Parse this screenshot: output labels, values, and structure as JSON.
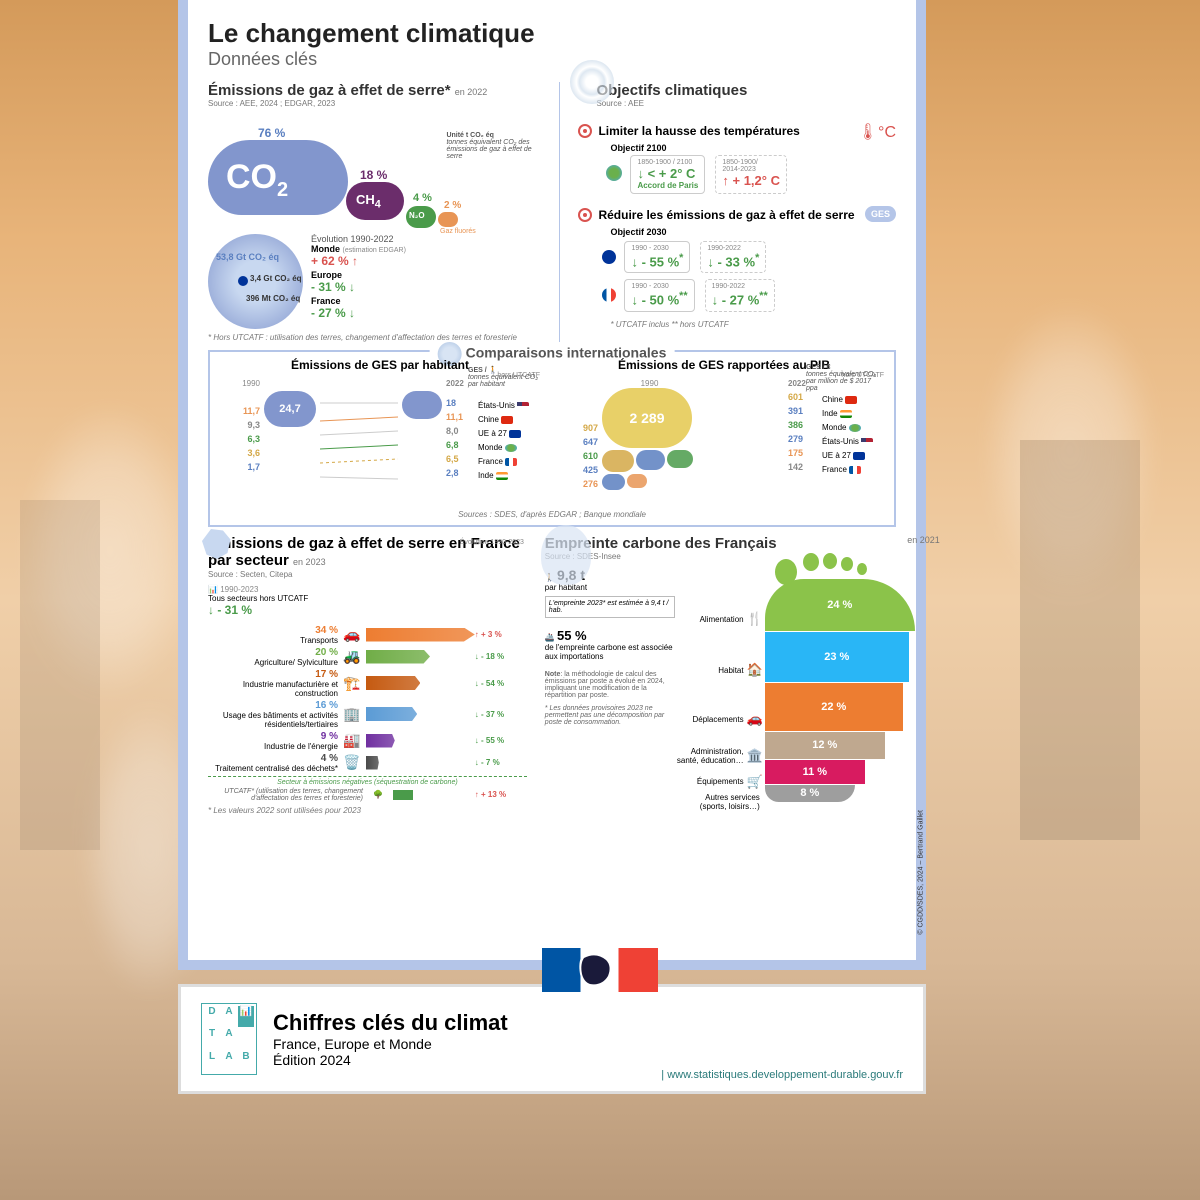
{
  "header": {
    "title": "Le changement climatique",
    "subtitle": "Données clés"
  },
  "ges": {
    "title": "Émissions de gaz à effet de serre*",
    "year": "en 2022",
    "source": "Source : AEE, 2024 ; EDGAR, 2023",
    "co2": {
      "label": "CO₂",
      "pct": "76 %",
      "color": "#8296cd"
    },
    "ch4": {
      "label": "CH₄",
      "pct": "18 %",
      "color": "#6b2d6b"
    },
    "n2o": {
      "label": "N₂O",
      "pct": "4 %",
      "color": "#4a9b4a"
    },
    "fluor": {
      "label": "Gaz fluorés",
      "pct": "2 %",
      "color": "#e89555"
    },
    "unit_title": "Unité t CO₂ éq",
    "unit_desc": "tonnes équivalent CO₂ des émissions de gaz à effet de serre",
    "evo_title": "Évolution 1990-2022",
    "monde": {
      "name": "Monde",
      "note": "(estimation EDGAR)",
      "val": "53,8 Gt CO₂ éq",
      "change": "+ 62 %",
      "dir": "up"
    },
    "europe": {
      "name": "Europe",
      "val": "3,4 Gt CO₂ éq",
      "change": "- 31 %",
      "dir": "down"
    },
    "france": {
      "name": "France",
      "val": "396 Mt CO₂ éq",
      "change": "- 27 %",
      "dir": "down"
    },
    "footnote": "* Hors UTCATF : utilisation des terres, changement d'affectation des terres et foresterie"
  },
  "objectives": {
    "title": "Objectifs climatiques",
    "source": "Source : AEE",
    "temp": {
      "title": "Limiter la hausse des températures",
      "obj": "Objectif 2100",
      "paris": {
        "period": "1850-1900 / 2100",
        "val": "< + 2° C",
        "label": "Accord de Paris"
      },
      "actual": {
        "period": "1850-1900/\n2014-2023",
        "val": "+ 1,2° C"
      }
    },
    "reduce": {
      "title": "Réduire les émissions de gaz à effet de serre",
      "obj": "Objectif 2030",
      "ges_label": "GES",
      "eu": {
        "target_period": "1990 - 2030",
        "target": "- 55 %",
        "target_note": "*",
        "actual_period": "1990-2022",
        "actual": "- 33 %",
        "actual_note": "*"
      },
      "fr": {
        "target_period": "1990 - 2030",
        "target": "- 50 %",
        "target_note": "**",
        "actual_period": "1990-2022",
        "actual": "- 27 %",
        "actual_note": "**"
      }
    },
    "notes": "* UTCATF inclus    ** hors UTCATF"
  },
  "intl": {
    "title": "Comparaisons internationales",
    "source": "Sources : SDES, d'après EDGAR ; Banque mondiale",
    "percap": {
      "title": "Émissions de GES par habitant",
      "note": "hors UTCATF",
      "unit_title": "GES /",
      "unit_desc": "tonnes équivalent CO₂ par habitant",
      "y1990": "1990",
      "y2022": "2022",
      "rows": [
        {
          "v90": "24,7",
          "v22": "18",
          "label": "États-Unis",
          "flag": "us",
          "c": "#5a7fc0"
        },
        {
          "v90": "11,7",
          "v22": "11,1",
          "label": "Chine",
          "flag": "cn",
          "c": "#e89555"
        },
        {
          "v90": "9,3",
          "v22": "8,0",
          "label": "UE à 27",
          "flag": "eu",
          "c": "#888"
        },
        {
          "v90": "6,3",
          "v22": "6,8",
          "label": "Monde",
          "flag": "world",
          "c": "#4a9b4a"
        },
        {
          "v90": "3,6",
          "v22": "6,5",
          "label": "France",
          "flag": "fr",
          "c": "#d4a847"
        },
        {
          "v90": "1,7",
          "v22": "2,8",
          "label": "Inde",
          "flag": "in",
          "c": "#5a7fc0"
        }
      ]
    },
    "gdp": {
      "title": "Émissions de GES rapportées au PIB",
      "note": "hors UTCATF",
      "unit_title": "GES / €",
      "unit_desc": "tonnes équivalent CO₂ par million de $ 2017 ppa",
      "y1990": "1990",
      "big": "2 289",
      "y2022": "2022",
      "rows": [
        {
          "v90": "907",
          "v22": "601",
          "label": "Chine",
          "flag": "cn",
          "c": "#d4a847"
        },
        {
          "v90": "647",
          "v22": "391",
          "label": "Inde",
          "flag": "in",
          "c": "#5a7fc0"
        },
        {
          "v90": "610",
          "v22": "386",
          "label": "Monde",
          "flag": "world",
          "c": "#4a9b4a"
        },
        {
          "v90": "425",
          "v22": "279",
          "label": "États-Unis",
          "flag": "us",
          "c": "#5a7fc0"
        },
        {
          "v90": "276",
          "v22": "175",
          "label": "UE à 27",
          "flag": "eu",
          "c": "#e89555"
        },
        {
          "v90": "",
          "v22": "142",
          "label": "France",
          "flag": "fr",
          "c": "#888"
        }
      ]
    }
  },
  "sectors": {
    "title": "Émissions de gaz à effet de serre en France par secteur",
    "year": "en 2023",
    "source": "Source : Secten, Citepa",
    "total": {
      "period": "1990-2023",
      "label": "Tous secteurs hors UTCATF",
      "val": "- 31 %"
    },
    "evo_label": "Évolution 1990-2023",
    "rows": [
      {
        "pct": "34 %",
        "label": "Transports",
        "change": "+ 3 %",
        "dir": "up",
        "c": "#ed7d31"
      },
      {
        "pct": "20 %",
        "label": "Agriculture/\nSylviculture",
        "change": "- 18 %",
        "dir": "down",
        "c": "#70ad47"
      },
      {
        "pct": "17 %",
        "label": "Industrie manufacturière et construction",
        "change": "- 54 %",
        "dir": "down",
        "c": "#c55a11"
      },
      {
        "pct": "16 %",
        "label": "Usage des bâtiments et activités résidentiels/tertiaires",
        "change": "- 37 %",
        "dir": "down",
        "c": "#5b9bd5"
      },
      {
        "pct": "9 %",
        "label": "Industrie de l'énergie",
        "change": "- 55 %",
        "dir": "down",
        "c": "#7030a0"
      },
      {
        "pct": "4 %",
        "label": "Traitement centralisé des déchets*",
        "change": "- 7 %",
        "dir": "down",
        "c": "#4a4a4a"
      }
    ],
    "negative": {
      "title": "Secteur à émissions négatives (séquestration de carbone)",
      "label": "UTCATF* (utilisation des terres, changement d'affectation des terres et foresterie)",
      "change": "+ 13 %"
    },
    "footnote": "* Les valeurs 2022 sont utilisées pour 2023"
  },
  "footprint": {
    "title": "Empreinte carbone des Français",
    "year": "en 2021",
    "source": "Source : SDES-Insee",
    "percap": {
      "val": "9,8 t",
      "label": "par habitant"
    },
    "est": "L'empreinte 2023* est estimée à 9,4 t / hab.",
    "import": {
      "pct": "55 %",
      "text": "de l'empreinte carbone est associée aux importations"
    },
    "note_label": "Note",
    "note": ": la méthodologie de calcul des émissions par poste a évolué en 2024, impliquant une modification de la répartition par poste.",
    "note2": "* Les données provisoires 2023 ne permettent pas une décomposition par poste de consommation.",
    "segs": [
      {
        "label": "Alimentation",
        "pct": "24 %",
        "c": "#8bc34a"
      },
      {
        "label": "Habitat",
        "pct": "23 %",
        "c": "#29b6f6"
      },
      {
        "label": "Déplacements",
        "pct": "22 %",
        "c": "#ed7d31"
      },
      {
        "label": "Administration, santé, éducation…",
        "pct": "12 %",
        "c": "#bfa88f"
      },
      {
        "label": "Équipements",
        "pct": "11 %",
        "c": "#d81b60"
      },
      {
        "label": "Autres services (sports, loisirs…)",
        "pct": "8 %",
        "c": "#9e9e9e"
      }
    ]
  },
  "credit": "© CGDD/SDES, 2024 – Bertrand Gaillet",
  "footer": {
    "title": "Chiffres clés du climat",
    "line1": "France, Europe et Monde",
    "line2": "Édition 2024",
    "url": "www.statistiques.developpement-durable.gouv.fr"
  }
}
